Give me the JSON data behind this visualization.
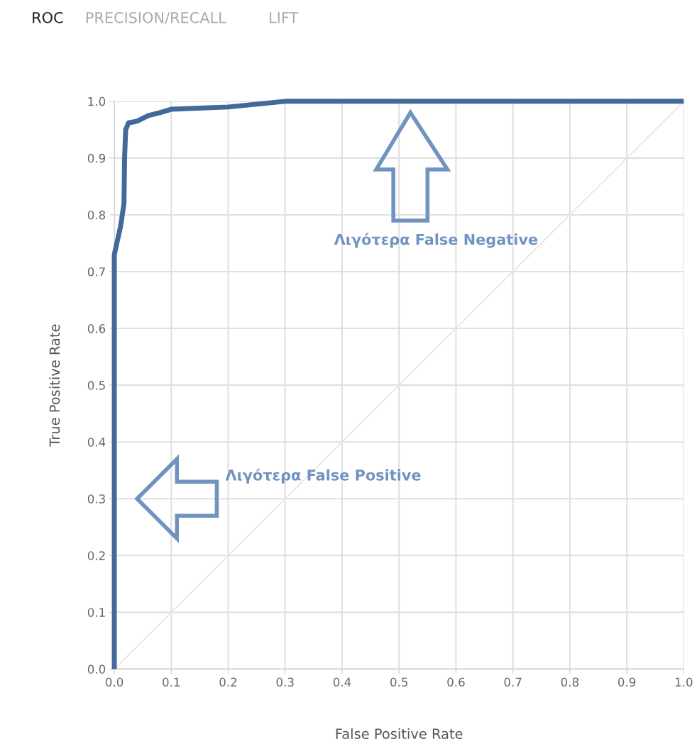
{
  "chart_data": {
    "type": "line",
    "title": "ROC",
    "xlabel": "False Positive Rate",
    "ylabel": "True Positive Rate",
    "annotations": [
      "PRECISION/RECALL",
      "LIFT",
      "Λιγότερα False Negative",
      "Λιγότερα False Positive"
    ],
    "series": [
      {
        "color": "#41699a",
        "x": [
          0,
          0,
          0.011,
          0.017,
          0.018,
          0.02,
          0.025,
          0.04,
          0.06,
          0.08,
          0.1,
          0.2,
          0.25,
          0.3,
          1
        ],
        "values": [
          0,
          0.73,
          0.78,
          0.82,
          0.9,
          0.95,
          0.962,
          0.965,
          0.975,
          0.98,
          0.986,
          0.99,
          0.995,
          1,
          1
        ]
      },
      {
        "color": "#e6e6e6",
        "x": [
          0,
          1
        ],
        "values": [
          0,
          1
        ]
      }
    ],
    "xlim": [
      0,
      1
    ],
    "ylim": [
      0,
      1
    ],
    "xticks": [
      {
        "value": 0,
        "label": "0.0"
      },
      0.1,
      0.2,
      0.3,
      0.4,
      0.5,
      0.6,
      0.7,
      0.8,
      0.9,
      {
        "value": 1,
        "label": "1.0"
      }
    ],
    "yticks": [
      {
        "value": 0,
        "label": "0.0"
      },
      0.1,
      0.2,
      0.3,
      0.4,
      0.5,
      0.6,
      0.7,
      0.8,
      0.9,
      {
        "value": 1,
        "label": "1.0"
      }
    ],
    "grid": true,
    "legend": false,
    "marker": "none",
    "line_style": "solid"
  }
}
